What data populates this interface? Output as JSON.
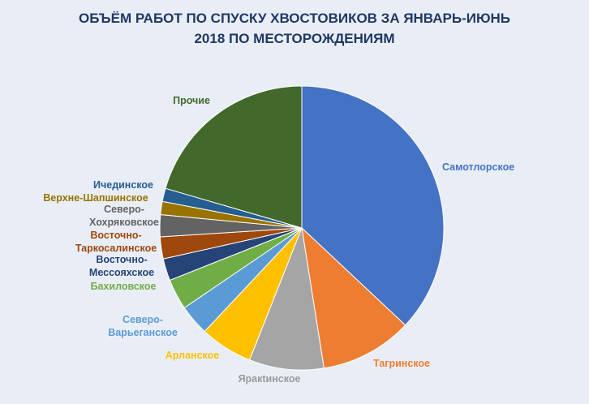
{
  "chart_data": {
    "type": "pie",
    "title_line1": "ОБЪЁМ РАБОТ ПО СПУСКУ ХВОСТОВИКОВ ЗА ЯНВАРЬ-ИЮНЬ",
    "title_line2": "2018 ПО МЕСТОРОЖДЕНИЯМ",
    "unit": "percent (estimated)",
    "slices": [
      {
        "label": "Самотлорское",
        "value": 37,
        "color": "#4472c4"
      },
      {
        "label": "Тагринское",
        "value": 10.5,
        "color": "#ed7d31"
      },
      {
        "label": "Яракtинское",
        "value": 8.5,
        "color": "#a5a5a5"
      },
      {
        "label": "Арланское",
        "value": 6,
        "color": "#ffc000"
      },
      {
        "label": "Северо-Варьеганское",
        "value": 3.5,
        "color": "#5b9bd5"
      },
      {
        "label": "Бахиловское",
        "value": 3.5,
        "color": "#70ad47"
      },
      {
        "label": "Восточно-Мессояхское",
        "value": 2.5,
        "color": "#264478"
      },
      {
        "label": "Восточно-Таркосалинское",
        "value": 2.5,
        "color": "#9e480e"
      },
      {
        "label": "Северо-Хохряковское",
        "value": 2.5,
        "color": "#636363"
      },
      {
        "label": "Верхне-Шапшинское",
        "value": 1.5,
        "color": "#997300"
      },
      {
        "label": "Ичединское",
        "value": 1.5,
        "color": "#255e91"
      },
      {
        "label": "Прочие",
        "value": 20.5,
        "color": "#43682b"
      }
    ]
  }
}
